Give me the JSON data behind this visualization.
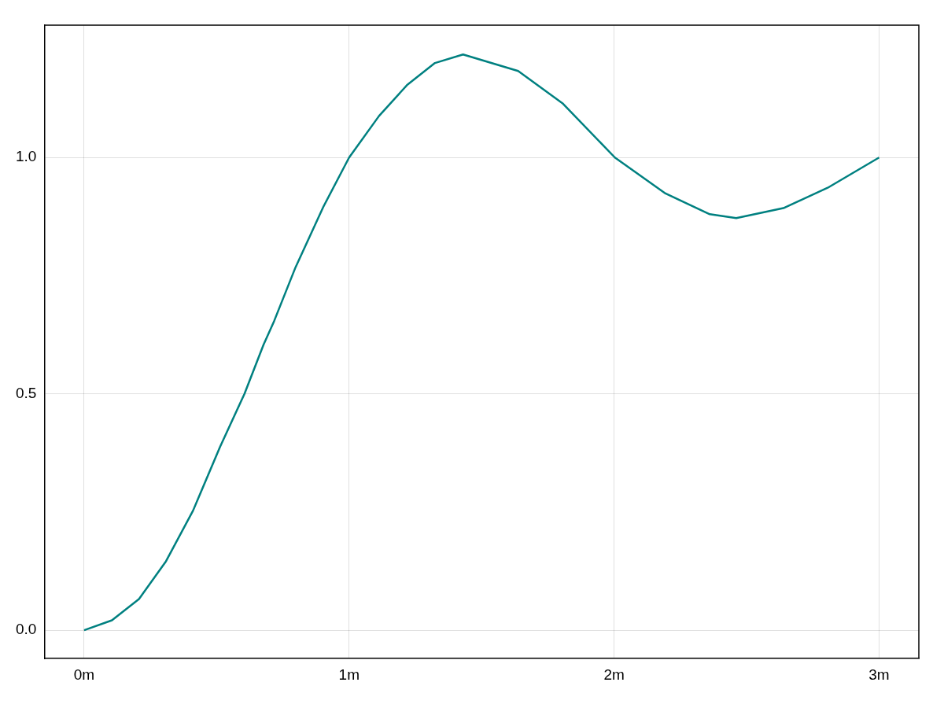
{
  "chart_data": {
    "type": "line",
    "x": [
      0,
      0.105,
      0.207,
      0.309,
      0.411,
      0.513,
      0.605,
      0.677,
      0.717,
      0.798,
      0.903,
      1.0,
      1.113,
      1.218,
      1.324,
      1.43,
      1.638,
      1.805,
      2.003,
      2.194,
      2.361,
      2.461,
      2.639,
      2.806,
      3.0
    ],
    "series": [
      {
        "color": "#008080",
        "values": [
          0,
          0.021,
          0.066,
          0.146,
          0.253,
          0.388,
          0.5,
          0.604,
          0.654,
          0.768,
          0.896,
          1.0,
          1.088,
          1.153,
          1.2,
          1.218,
          1.183,
          1.115,
          1.0,
          0.924,
          0.88,
          0.872,
          0.893,
          0.936,
          1.0
        ]
      }
    ],
    "xlim": [
      -0.15,
      3.15
    ],
    "ylim": [
      -0.06,
      1.28
    ],
    "xticks": [
      {
        "value": 0,
        "label": "0m"
      },
      {
        "value": 1,
        "label": "1m"
      },
      {
        "value": 2,
        "label": "2m"
      },
      {
        "value": 3,
        "label": "3m"
      }
    ],
    "yticks": [
      {
        "value": 0,
        "label": "0.0"
      },
      {
        "value": 0.5,
        "label": "0.5"
      },
      {
        "value": 1,
        "label": "1.0"
      }
    ],
    "grid": true,
    "legend": false,
    "marker": "none",
    "line_style": "solid"
  }
}
